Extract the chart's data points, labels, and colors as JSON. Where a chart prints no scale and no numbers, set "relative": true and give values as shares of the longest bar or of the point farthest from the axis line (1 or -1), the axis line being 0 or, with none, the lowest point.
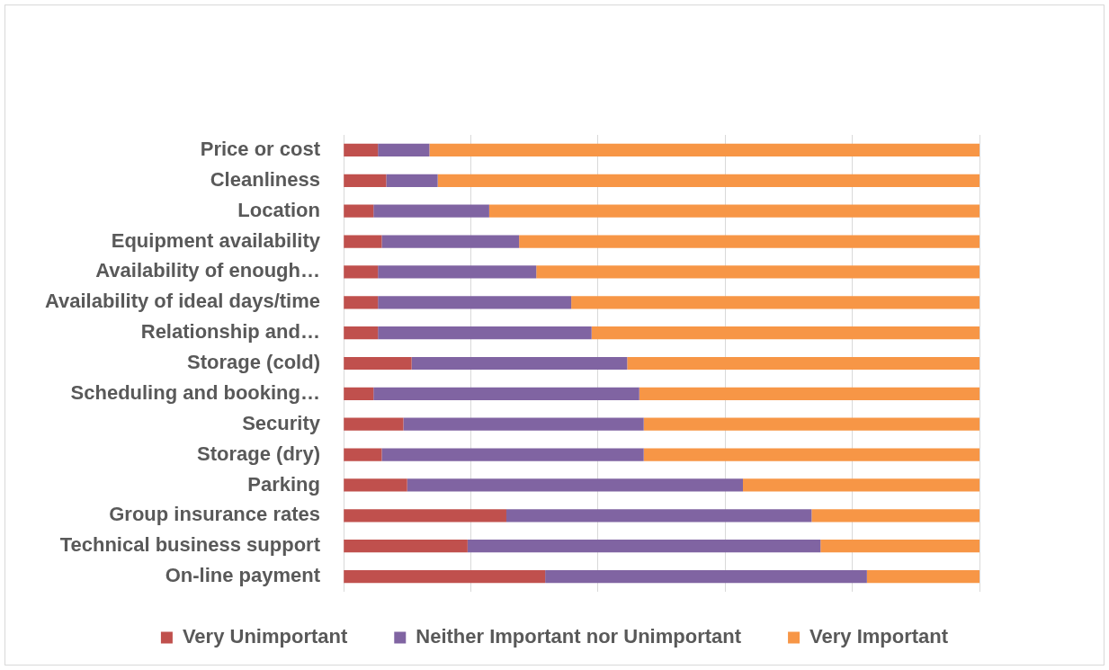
{
  "chart_data": {
    "type": "bar",
    "orientation": "horizontal",
    "stacked": true,
    "relative": true,
    "grid": "x",
    "legend": "bottom",
    "categories": [
      "Price or cost",
      "Cleanliness",
      "Location",
      "Equipment availability",
      "Availability of enough…",
      "Availability of ideal days/time",
      "Relationship and…",
      "Storage (cold)",
      "Scheduling and booking…",
      "Security",
      "Storage (dry)",
      "Parking",
      "Group insurance rates",
      "Technical business support",
      "On-line payment"
    ],
    "series": [
      {
        "name": "Very Unimportant",
        "color": "#c0504d",
        "values": [
          0.054,
          0.067,
          0.047,
          0.06,
          0.054,
          0.054,
          0.054,
          0.107,
          0.047,
          0.094,
          0.06,
          0.1,
          0.256,
          0.195,
          0.317
        ]
      },
      {
        "name": "Neither Important nor Unimportant",
        "color": "#8064a2",
        "values": [
          0.081,
          0.081,
          0.182,
          0.216,
          0.249,
          0.304,
          0.336,
          0.339,
          0.418,
          0.378,
          0.412,
          0.528,
          0.48,
          0.555,
          0.506
        ]
      },
      {
        "name": "Very Important",
        "color": "#f79646",
        "values": [
          0.865,
          0.852,
          0.771,
          0.724,
          0.697,
          0.642,
          0.61,
          0.554,
          0.535,
          0.528,
          0.528,
          0.372,
          0.264,
          0.25,
          0.177
        ]
      }
    ]
  }
}
